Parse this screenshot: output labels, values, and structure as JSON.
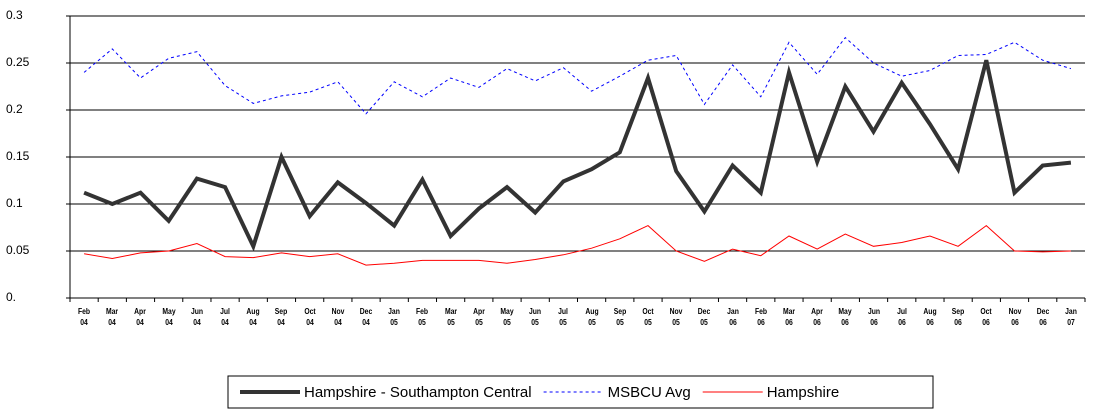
{
  "chart_data": {
    "type": "line",
    "categories": [
      "Feb 04",
      "Mar 04",
      "Apr 04",
      "May 04",
      "Jun 04",
      "Jul 04",
      "Aug 04",
      "Sep 04",
      "Oct 04",
      "Nov 04",
      "Dec 04",
      "Jan 05",
      "Feb 05",
      "Mar 05",
      "Apr 05",
      "May 05",
      "Jun 05",
      "Jul 05",
      "Aug 05",
      "Sep 05",
      "Oct 05",
      "Nov 05",
      "Dec 05",
      "Jan 06",
      "Feb 06",
      "Mar 06",
      "Apr 06",
      "May 06",
      "Jun 06",
      "Jul 06",
      "Aug 06",
      "Sep 06",
      "Oct 06",
      "Nov 06",
      "Dec 06",
      "Jan 07"
    ],
    "series": [
      {
        "name": "Hampshire - Southampton Central",
        "color": "#333333",
        "linewidth": 4,
        "linestyle": "solid",
        "values": [
          0.112,
          0.1,
          0.112,
          0.082,
          0.127,
          0.118,
          0.055,
          0.15,
          0.087,
          0.123,
          0.101,
          0.077,
          0.126,
          0.066,
          0.095,
          0.118,
          0.091,
          0.124,
          0.137,
          0.155,
          0.234,
          0.135,
          0.092,
          0.141,
          0.112,
          0.24,
          0.145,
          0.225,
          0.177,
          0.229,
          0.185,
          0.137,
          0.253,
          0.112,
          0.141,
          0.144
        ]
      },
      {
        "name": "MSBCU Avg",
        "color": "#0000ff",
        "linewidth": 1,
        "linestyle": "dashed",
        "values": [
          0.24,
          0.265,
          0.234,
          0.255,
          0.262,
          0.226,
          0.207,
          0.215,
          0.219,
          0.23,
          0.196,
          0.23,
          0.214,
          0.234,
          0.224,
          0.244,
          0.231,
          0.245,
          0.22,
          0.236,
          0.253,
          0.258,
          0.206,
          0.248,
          0.214,
          0.272,
          0.238,
          0.277,
          0.25,
          0.236,
          0.242,
          0.258,
          0.259,
          0.272,
          0.253,
          0.244
        ]
      },
      {
        "name": "Hampshire",
        "color": "#ff0000",
        "linewidth": 1,
        "linestyle": "solid",
        "values": [
          0.047,
          0.042,
          0.048,
          0.05,
          0.058,
          0.044,
          0.043,
          0.048,
          0.044,
          0.047,
          0.035,
          0.037,
          0.04,
          0.04,
          0.04,
          0.037,
          0.041,
          0.046,
          0.053,
          0.063,
          0.077,
          0.05,
          0.039,
          0.052,
          0.045,
          0.066,
          0.052,
          0.068,
          0.055,
          0.059,
          0.066,
          0.055,
          0.077,
          0.05,
          0.049,
          0.05
        ]
      }
    ],
    "ylim": [
      0,
      0.3
    ],
    "yticks": [
      {
        "value": 0,
        "label": "0."
      },
      0.05,
      0.1,
      0.15,
      0.2,
      0.25,
      0.3
    ],
    "grid": true,
    "legend": "bottom"
  }
}
